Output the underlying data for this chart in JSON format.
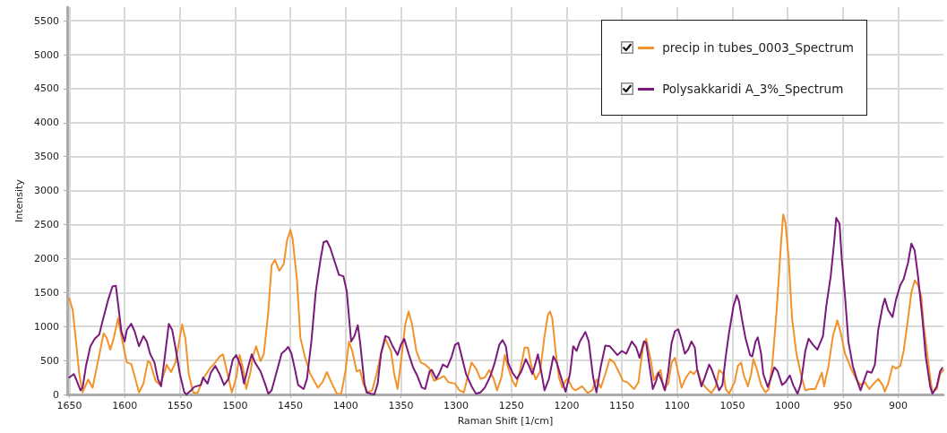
{
  "chart_data": {
    "type": "line",
    "xlabel": "Raman Shift [1/cm]",
    "ylabel": "Intensity",
    "xlim": [
      1652,
      859
    ],
    "xticks": [
      1650,
      1600,
      1550,
      1500,
      1450,
      1400,
      1350,
      1300,
      1250,
      1200,
      1150,
      1100,
      1050,
      1000,
      950,
      900
    ],
    "ylim": [
      0,
      5700
    ],
    "yticks": [
      0,
      500,
      1000,
      1500,
      2000,
      2500,
      3000,
      3500,
      4000,
      4500,
      5000,
      5500
    ],
    "grid": true,
    "legend": "top right",
    "marker": "none",
    "series": [
      {
        "name": "precip in tubes_0003_Spectrum",
        "color": "#f2922a",
        "x": [
          1650,
          1647,
          1644,
          1641,
          1638,
          1633,
          1629,
          1625,
          1619,
          1616,
          1613,
          1610,
          1606,
          1604,
          1600,
          1598,
          1594,
          1591,
          1587,
          1583,
          1579,
          1577,
          1572,
          1568,
          1564,
          1562,
          1558,
          1554,
          1548,
          1545,
          1542,
          1538,
          1534,
          1529,
          1523,
          1518,
          1514,
          1511,
          1508,
          1503,
          1499,
          1496,
          1493,
          1490,
          1486,
          1484,
          1481,
          1477,
          1474,
          1470,
          1467,
          1464,
          1460,
          1456,
          1453,
          1450,
          1448,
          1444,
          1441,
          1437,
          1432,
          1425,
          1421,
          1417,
          1413,
          1408,
          1404,
          1400,
          1397,
          1394,
          1390,
          1387,
          1384,
          1380,
          1376,
          1372,
          1368,
          1364,
          1359,
          1356,
          1353,
          1350,
          1346,
          1343,
          1340,
          1336,
          1332,
          1328,
          1324,
          1320,
          1316,
          1311,
          1307,
          1301,
          1297,
          1293,
          1290,
          1286,
          1282,
          1278,
          1274,
          1270,
          1266,
          1263,
          1259,
          1256,
          1253,
          1249,
          1246,
          1242,
          1238,
          1235,
          1232,
          1228,
          1224,
          1220,
          1217,
          1215,
          1213,
          1210,
          1207,
          1204,
          1201,
          1199,
          1195,
          1192,
          1186,
          1181,
          1177,
          1173,
          1169,
          1165,
          1161,
          1157,
          1153,
          1149,
          1145,
          1139,
          1135,
          1131,
          1128,
          1124,
          1121,
          1118,
          1115,
          1112,
          1108,
          1105,
          1102,
          1098,
          1096,
          1092,
          1088,
          1085,
          1082,
          1078,
          1074,
          1069,
          1065,
          1062,
          1058,
          1056,
          1053,
          1048,
          1045,
          1042,
          1040,
          1036,
          1033,
          1031,
          1028,
          1024,
          1020,
          1017,
          1014,
          1010,
          1006,
          1004,
          1002,
          999,
          996,
          992,
          988,
          984,
          980,
          975,
          969,
          967,
          963,
          959,
          955,
          952,
          948,
          942,
          938,
          934,
          930,
          926,
          922,
          918,
          914,
          912,
          909,
          905,
          902,
          898,
          895,
          891,
          888,
          885,
          882,
          879,
          877,
          874,
          871,
          869,
          865,
          862,
          859
        ],
        "values": [
          1410,
          1240,
          780,
          290,
          30,
          220,
          100,
          420,
          900,
          820,
          660,
          820,
          1120,
          950,
          620,
          470,
          450,
          270,
          30,
          160,
          490,
          470,
          200,
          140,
          320,
          440,
          330,
          470,
          1030,
          820,
          300,
          30,
          20,
          230,
          380,
          470,
          560,
          590,
          380,
          30,
          250,
          580,
          400,
          80,
          340,
          560,
          710,
          490,
          600,
          1220,
          1900,
          1980,
          1820,
          1920,
          2270,
          2420,
          2290,
          1680,
          840,
          560,
          300,
          100,
          180,
          330,
          180,
          10,
          10,
          360,
          780,
          640,
          340,
          360,
          160,
          30,
          60,
          300,
          600,
          820,
          640,
          300,
          80,
          470,
          1040,
          1220,
          1040,
          640,
          470,
          440,
          380,
          200,
          230,
          270,
          180,
          160,
          60,
          30,
          230,
          470,
          380,
          230,
          250,
          360,
          230,
          60,
          250,
          580,
          400,
          200,
          120,
          360,
          690,
          690,
          420,
          220,
          340,
          860,
          1170,
          1220,
          1120,
          640,
          250,
          100,
          200,
          230,
          100,
          60,
          120,
          20,
          60,
          220,
          100,
          300,
          520,
          470,
          340,
          200,
          180,
          80,
          180,
          690,
          820,
          520,
          210,
          300,
          360,
          80,
          160,
          470,
          540,
          250,
          100,
          250,
          340,
          300,
          360,
          180,
          100,
          20,
          120,
          360,
          300,
          80,
          10,
          180,
          420,
          470,
          300,
          120,
          300,
          520,
          380,
          140,
          30,
          80,
          420,
          1220,
          2220,
          2650,
          2530,
          2000,
          1120,
          600,
          300,
          60,
          80,
          80,
          320,
          120,
          420,
          860,
          1090,
          910,
          600,
          360,
          230,
          140,
          180,
          80,
          160,
          230,
          140,
          40,
          160,
          420,
          380,
          420,
          640,
          1120,
          1500,
          1680,
          1610,
          1440,
          1040,
          640,
          250,
          30,
          80,
          300,
          360
        ]
      },
      {
        "name": "Polysakkaridi A_3%_Spectrum",
        "color": "#7a1a7c",
        "x": [
          1650,
          1646,
          1644,
          1640,
          1638,
          1635,
          1631,
          1627,
          1623,
          1620,
          1615,
          1611,
          1608,
          1606,
          1603,
          1600,
          1598,
          1594,
          1591,
          1587,
          1583,
          1580,
          1577,
          1573,
          1570,
          1567,
          1563,
          1560,
          1557,
          1554,
          1550,
          1546,
          1544,
          1540,
          1537,
          1531,
          1529,
          1525,
          1522,
          1518,
          1514,
          1510,
          1506,
          1502,
          1499,
          1495,
          1492,
          1488,
          1485,
          1482,
          1477,
          1473,
          1470,
          1467,
          1463,
          1458,
          1454,
          1452,
          1449,
          1446,
          1443,
          1438,
          1435,
          1431,
          1427,
          1423,
          1420,
          1417,
          1414,
          1410,
          1406,
          1402,
          1399,
          1395,
          1392,
          1389,
          1387,
          1383,
          1381,
          1377,
          1374,
          1371,
          1368,
          1364,
          1361,
          1358,
          1353,
          1350,
          1347,
          1343,
          1339,
          1335,
          1331,
          1328,
          1324,
          1322,
          1318,
          1315,
          1312,
          1308,
          1304,
          1301,
          1298,
          1295,
          1291,
          1286,
          1282,
          1278,
          1274,
          1269,
          1265,
          1261,
          1258,
          1255,
          1253,
          1249,
          1245,
          1241,
          1237,
          1234,
          1231,
          1228,
          1226,
          1223,
          1220,
          1216,
          1212,
          1209,
          1205,
          1201,
          1197,
          1194,
          1191,
          1188,
          1183,
          1180,
          1176,
          1173,
          1169,
          1165,
          1161,
          1154,
          1150,
          1146,
          1141,
          1137,
          1134,
          1130,
          1128,
          1125,
          1122,
          1119,
          1117,
          1114,
          1111,
          1108,
          1105,
          1102,
          1099,
          1096,
          1093,
          1090,
          1087,
          1084,
          1082,
          1078,
          1075,
          1071,
          1069,
          1065,
          1062,
          1059,
          1056,
          1053,
          1049,
          1046,
          1044,
          1041,
          1038,
          1034,
          1032,
          1029,
          1027,
          1024,
          1022,
          1018,
          1015,
          1012,
          1009,
          1005,
          1002,
          998,
          995,
          991,
          988,
          984,
          981,
          977,
          973,
          968,
          965,
          961,
          958,
          956,
          953,
          951,
          948,
          945,
          941,
          937,
          934,
          931,
          928,
          924,
          921,
          918,
          914,
          912,
          909,
          905,
          902,
          898,
          895,
          891,
          888,
          885,
          882,
          878,
          875,
          871,
          869,
          865,
          862,
          860
        ],
        "values": [
          250,
          300,
          230,
          60,
          100,
          420,
          710,
          820,
          880,
          1080,
          1390,
          1590,
          1600,
          1340,
          930,
          780,
          950,
          1040,
          930,
          710,
          860,
          780,
          600,
          470,
          230,
          120,
          640,
          1040,
          950,
          690,
          300,
          30,
          0,
          60,
          110,
          140,
          250,
          160,
          320,
          420,
          300,
          140,
          230,
          520,
          580,
          420,
          160,
          420,
          590,
          470,
          340,
          160,
          10,
          60,
          300,
          600,
          660,
          700,
          600,
          380,
          140,
          80,
          230,
          780,
          1520,
          1960,
          2240,
          2260,
          2160,
          1960,
          1760,
          1740,
          1520,
          780,
          860,
          1020,
          780,
          160,
          30,
          10,
          0,
          160,
          600,
          860,
          840,
          730,
          580,
          730,
          820,
          600,
          400,
          270,
          100,
          80,
          340,
          360,
          230,
          320,
          440,
          400,
          560,
          730,
          760,
          560,
          300,
          120,
          10,
          30,
          100,
          270,
          470,
          730,
          800,
          710,
          470,
          320,
          230,
          340,
          520,
          420,
          300,
          470,
          590,
          340,
          60,
          230,
          560,
          470,
          250,
          40,
          300,
          710,
          640,
          780,
          920,
          780,
          250,
          30,
          420,
          720,
          710,
          580,
          640,
          600,
          780,
          690,
          540,
          780,
          760,
          420,
          80,
          200,
          320,
          200,
          60,
          340,
          760,
          930,
          960,
          800,
          600,
          660,
          780,
          690,
          380,
          120,
          250,
          440,
          380,
          200,
          60,
          140,
          560,
          910,
          1300,
          1460,
          1370,
          1080,
          820,
          580,
          560,
          780,
          840,
          600,
          300,
          110,
          250,
          400,
          340,
          140,
          180,
          280,
          140,
          10,
          160,
          640,
          820,
          730,
          660,
          860,
          1300,
          1740,
          2220,
          2600,
          2510,
          2000,
          1440,
          780,
          420,
          200,
          60,
          200,
          340,
          320,
          440,
          950,
          1300,
          1410,
          1240,
          1140,
          1390,
          1610,
          1700,
          1940,
          2220,
          2120,
          1740,
          1120,
          560,
          120,
          10,
          120,
          340,
          390
        ]
      }
    ]
  }
}
